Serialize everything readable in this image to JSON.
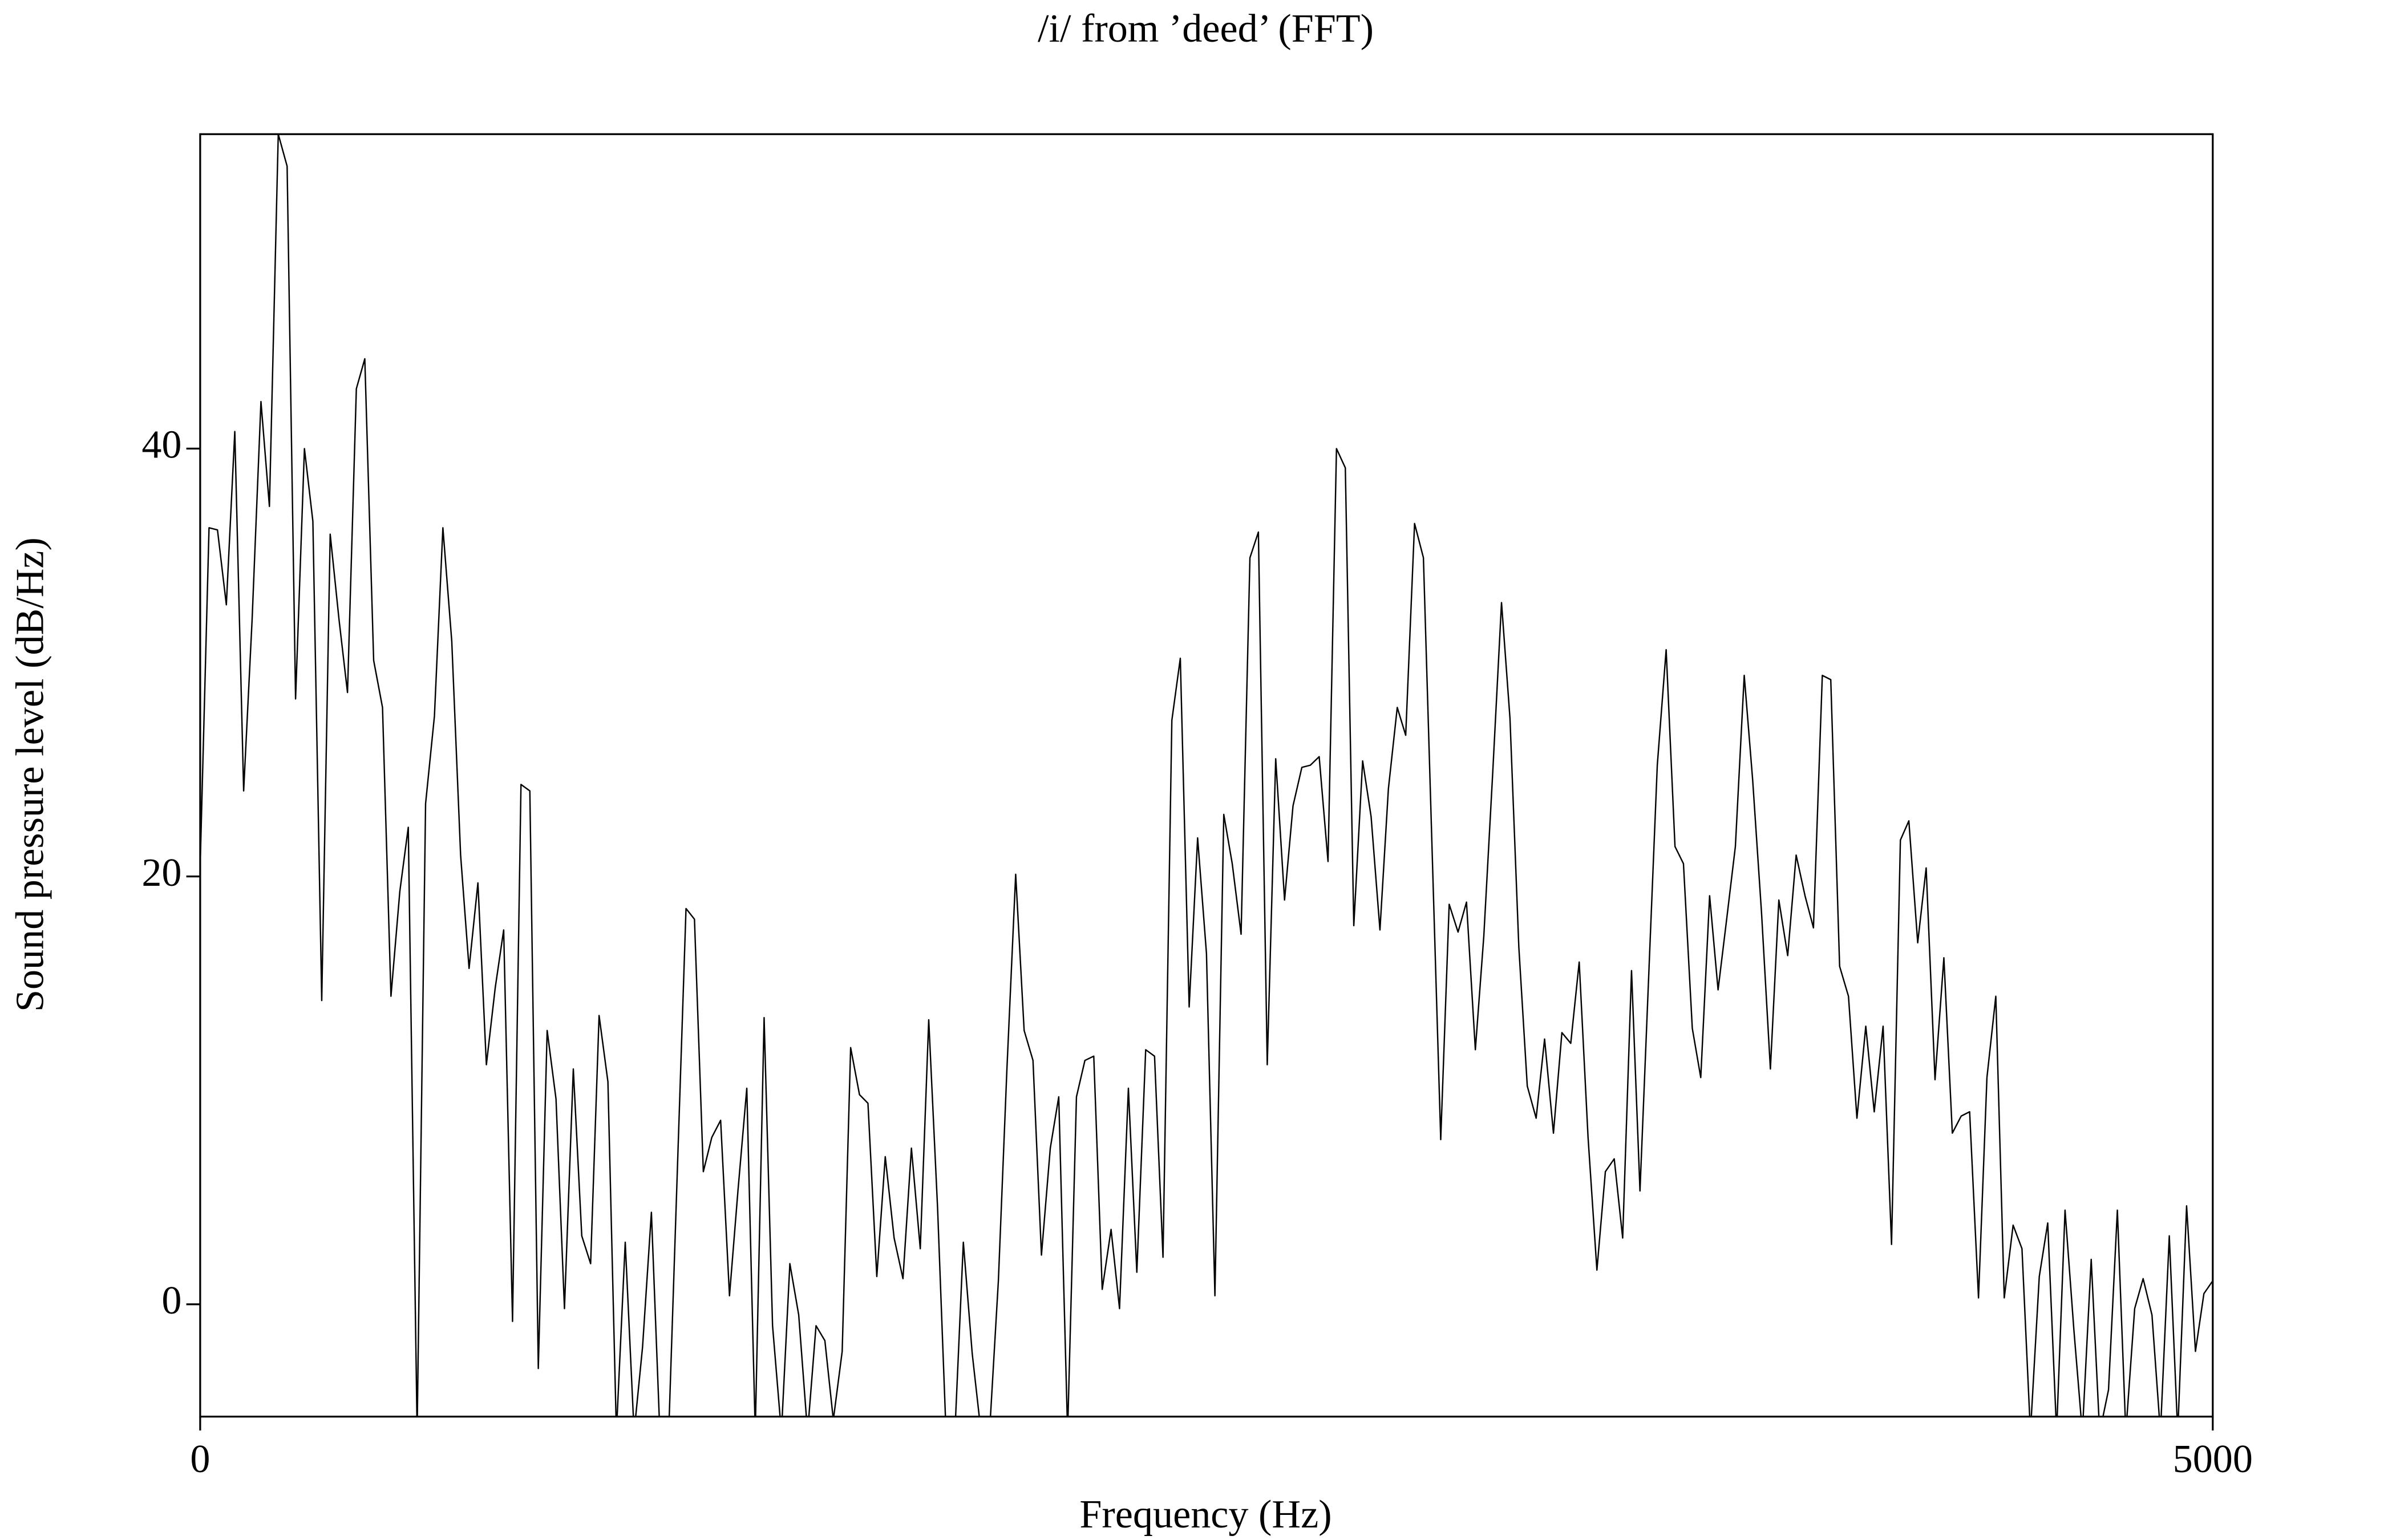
{
  "chart_data": {
    "type": "line",
    "title": "/i/ from ’deed’ (FFT)",
    "x_label": "Frequency (Hz)",
    "y_label": "Sound pressure level (dB/Hz)",
    "xlim": [
      0,
      5000
    ],
    "xticks": [
      0,
      5000
    ],
    "ylim": [
      -5.25,
      54.7
    ],
    "yticks": [
      0,
      20,
      40
    ],
    "color": "#000000",
    "x": [
      0,
      22,
      43,
      65,
      86,
      108,
      129,
      151,
      172,
      194,
      216,
      237,
      259,
      280,
      302,
      323,
      345,
      366,
      388,
      409,
      431,
      453,
      474,
      496,
      517,
      539,
      560,
      582,
      603,
      625,
      647,
      668,
      690,
      711,
      733,
      754,
      776,
      797,
      819,
      840,
      862,
      884,
      905,
      927,
      948,
      970,
      991,
      1013,
      1034,
      1056,
      1078,
      1099,
      1121,
      1142,
      1164,
      1185,
      1207,
      1228,
      1250,
      1271,
      1293,
      1315,
      1336,
      1358,
      1379,
      1401,
      1422,
      1444,
      1465,
      1487,
      1509,
      1530,
      1552,
      1573,
      1595,
      1616,
      1638,
      1659,
      1681,
      1702,
      1724,
      1746,
      1767,
      1789,
      1810,
      1832,
      1853,
      1875,
      1896,
      1918,
      1940,
      1961,
      1983,
      2004,
      2026,
      2047,
      2069,
      2090,
      2112,
      2133,
      2155,
      2177,
      2198,
      2220,
      2241,
      2263,
      2284,
      2306,
      2327,
      2349,
      2371,
      2392,
      2414,
      2435,
      2457,
      2478,
      2500,
      2521,
      2543,
      2564,
      2586,
      2608,
      2629,
      2651,
      2672,
      2694,
      2715,
      2737,
      2758,
      2780,
      2802,
      2823,
      2845,
      2866,
      2888,
      2909,
      2931,
      2952,
      2974,
      2995,
      3017,
      3039,
      3060,
      3082,
      3103,
      3125,
      3146,
      3168,
      3189,
      3211,
      3233,
      3254,
      3276,
      3297,
      3319,
      3340,
      3362,
      3383,
      3405,
      3426,
      3448,
      3470,
      3491,
      3513,
      3534,
      3556,
      3577,
      3599,
      3620,
      3642,
      3664,
      3685,
      3707,
      3728,
      3750,
      3771,
      3793,
      3814,
      3836,
      3857,
      3879,
      3901,
      3922,
      3944,
      3965,
      3987,
      4008,
      4030,
      4051,
      4073,
      4095,
      4116,
      4138,
      4159,
      4181,
      4202,
      4224,
      4245,
      4267,
      4288,
      4310,
      4332,
      4353,
      4375,
      4396,
      4418,
      4439,
      4461,
      4482,
      4504,
      4526,
      4547,
      4569,
      4590,
      4612,
      4633,
      4655,
      4676,
      4698,
      4719,
      4741,
      4763,
      4784,
      4806,
      4827,
      4849,
      4870,
      4892,
      4913,
      4935,
      4957,
      4978,
      5000
    ],
    "values": [
      20.5,
      36.3,
      36.2,
      32.7,
      40.8,
      24,
      32,
      42.2,
      37.3,
      54.7,
      53.2,
      28.3,
      40,
      36.6,
      14.2,
      36,
      32,
      28.6,
      42.8,
      44.2,
      30.1,
      27.9,
      14.4,
      19.3,
      22.3,
      -6,
      23.4,
      27.5,
      36.3,
      31,
      21,
      15.7,
      19.7,
      11.2,
      14.8,
      17.5,
      -0.8,
      24.3,
      24,
      -3,
      12.8,
      9.6,
      -0.2,
      11,
      3.2,
      1.9,
      13.5,
      10.4,
      -6,
      2.9,
      -6,
      -2,
      4.3,
      -6,
      -6,
      6,
      18.5,
      18,
      6.2,
      7.8,
      8.6,
      0.4,
      5.3,
      10.1,
      -6,
      13.4,
      -1,
      -6,
      1.9,
      -0.5,
      -6,
      -1,
      -1.7,
      -5.4,
      -2.2,
      12,
      9.8,
      9.4,
      1.3,
      6.9,
      3.1,
      1.2,
      7.3,
      2.6,
      13.3,
      4.5,
      -6,
      -6,
      2.9,
      -2.3,
      -6,
      -6,
      1.1,
      10.9,
      20.1,
      12.8,
      11.4,
      2.3,
      7.3,
      9.7,
      -6,
      9.7,
      11.4,
      11.6,
      0.7,
      3.5,
      -0.2,
      10.1,
      1.5,
      11.9,
      11.6,
      2.2,
      27.3,
      30.2,
      13.9,
      21.8,
      16.4,
      0.4,
      22.9,
      20.6,
      17.3,
      34.9,
      36.1,
      11.2,
      25.5,
      18.9,
      23.3,
      25.1,
      25.2,
      25.6,
      20.7,
      40,
      39.1,
      17.7,
      25.4,
      22.8,
      17.5,
      24.1,
      27.9,
      26.6,
      36.5,
      34.9,
      21.6,
      7.7,
      18.7,
      17.4,
      18.8,
      11.9,
      17.2,
      24.8,
      32.8,
      27.4,
      16.7,
      10.2,
      8.7,
      12.4,
      8,
      12.7,
      12.2,
      16,
      7.8,
      1.6,
      6.2,
      6.8,
      3.1,
      15.6,
      5.3,
      15.5,
      25.2,
      30.6,
      21.4,
      20.6,
      12.9,
      10.6,
      19.1,
      14.7,
      18.1,
      21.4,
      29.4,
      24.5,
      18.3,
      11,
      18.9,
      16.3,
      21,
      19.1,
      17.6,
      29.4,
      29.2,
      15.8,
      14.4,
      8.7,
      13,
      9,
      13,
      2.8,
      21.7,
      22.6,
      16.9,
      20.4,
      10.5,
      16.2,
      8,
      8.8,
      9,
      0.3,
      10.6,
      14.4,
      0.3,
      3.7,
      2.6,
      -6,
      1.3,
      3.8,
      -6,
      4.4,
      -1.2,
      -6,
      2.1,
      -6,
      -4,
      4.4,
      -6,
      -0.2,
      1.2,
      -0.5,
      -6,
      3.2,
      -6,
      4.6,
      -2.2,
      0.5,
      1.1
    ]
  }
}
